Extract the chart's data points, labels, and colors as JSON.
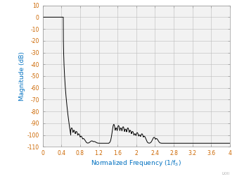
{
  "title": "",
  "xlabel": "Normalized Frequency (1/fₛ)",
  "ylabel": "Magnitude (dB)",
  "xlim": [
    0,
    4
  ],
  "ylim": [
    -110,
    10
  ],
  "xticks": [
    0,
    0.4,
    0.8,
    1.2,
    1.6,
    2.0,
    2.4,
    2.8,
    3.2,
    3.6,
    4.0
  ],
  "yticks": [
    10,
    0,
    -10,
    -20,
    -30,
    -40,
    -50,
    -60,
    -70,
    -80,
    -90,
    -100,
    -110
  ],
  "grid_color": "#bbbbbb",
  "line_color": "#000000",
  "axis_label_color": "#0070c0",
  "tick_label_color": "#cc6600",
  "bg_color": "#ffffff",
  "plot_bg_color": "#f2f2f2",
  "watermark": "LXXI"
}
